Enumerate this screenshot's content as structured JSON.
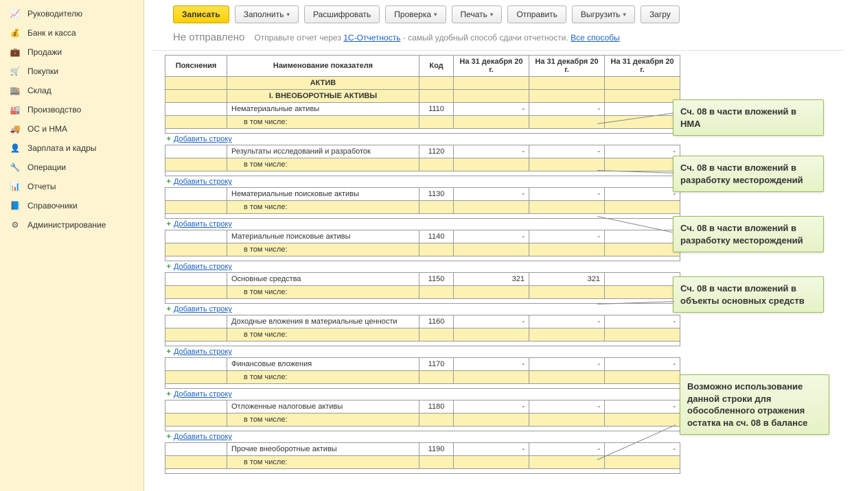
{
  "sidebar": {
    "items": [
      {
        "icon": "📈",
        "label": "Руководителю"
      },
      {
        "icon": "💰",
        "label": "Банк и касса"
      },
      {
        "icon": "💼",
        "label": "Продажи"
      },
      {
        "icon": "🛒",
        "label": "Покупки"
      },
      {
        "icon": "🏬",
        "label": "Склад"
      },
      {
        "icon": "🏭",
        "label": "Производство"
      },
      {
        "icon": "🚚",
        "label": "ОС и НМА"
      },
      {
        "icon": "👤",
        "label": "Зарплата и кадры"
      },
      {
        "icon": "🔧",
        "label": "Операции"
      },
      {
        "icon": "📊",
        "label": "Отчеты"
      },
      {
        "icon": "📘",
        "label": "Справочники"
      },
      {
        "icon": "⚙",
        "label": "Администрирование"
      }
    ]
  },
  "toolbar": {
    "write": "Записать",
    "fill": "Заполнить",
    "decode": "Расшифровать",
    "check": "Проверка",
    "print": "Печать",
    "send": "Отправить",
    "export": "Выгрузить",
    "load": "Загру"
  },
  "status": {
    "label": "Не отправлено",
    "hint_pre": "Отправьте отчет через ",
    "hint_link1": "1С-Отчетность",
    "hint_mid": " - самый удобный способ сдачи отчетности. ",
    "hint_link2": "Все способы"
  },
  "table": {
    "headers": {
      "prov": "Пояснения",
      "name": "Наименование показателя",
      "code": "Код",
      "d1": "На 31 декабря 20    г.",
      "d2": "На 31 декабря 20    г.",
      "d3": "На 31 декабря 20    г."
    },
    "section_title": "АКТИВ",
    "section_sub": "I. ВНЕОБОРОТНЫЕ АКТИВЫ",
    "add_row": "Добавить строку",
    "vtom": "в том числе:",
    "rows": [
      {
        "name": "Нематериальные активы",
        "code": "1110",
        "v1": "-",
        "v2": "-",
        "v3": "-"
      },
      {
        "name": "Результаты исследований и разработок",
        "code": "1120",
        "v1": "-",
        "v2": "-",
        "v3": "-"
      },
      {
        "name": "Нематериальные поисковые активы",
        "code": "1130",
        "v1": "-",
        "v2": "-",
        "v3": "-"
      },
      {
        "name": "Материальные поисковые активы",
        "code": "1140",
        "v1": "-",
        "v2": "-",
        "v3": "-"
      },
      {
        "name": "Основные средства",
        "code": "1150",
        "v1": "321",
        "v2": "321",
        "v3": "-"
      },
      {
        "name": "Доходные вложения в материальные ценности",
        "code": "1160",
        "v1": "-",
        "v2": "-",
        "v3": "-"
      },
      {
        "name": "Финансовые вложения",
        "code": "1170",
        "v1": "-",
        "v2": "-",
        "v3": "-"
      },
      {
        "name": "Отложенные налоговые активы",
        "code": "1180",
        "v1": "-",
        "v2": "-",
        "v3": "-"
      },
      {
        "name": "Прочие внеоборотные активы",
        "code": "1190",
        "v1": "-",
        "v2": "-",
        "v3": "-"
      }
    ]
  },
  "annotations": {
    "a1": "Сч. 08 в части вложений в НМА",
    "a2": "Сч. 08 в части вложений в разработку месторождений",
    "a3": "Сч. 08 в части вложений в разработку месторождений",
    "a4": "Сч. 08 в части вложений в объекты основных средств",
    "a5": "Возможно использование данной строки для обособленного отражения остатка на сч. 08 в балансе"
  },
  "colors": {
    "sidebar_bg": "#fdf4d2",
    "primary_btn": "#ffd93b",
    "annot_bg": "#ecf5d4",
    "yellow_row": "#fcf2b4",
    "link": "#1a61c2"
  }
}
